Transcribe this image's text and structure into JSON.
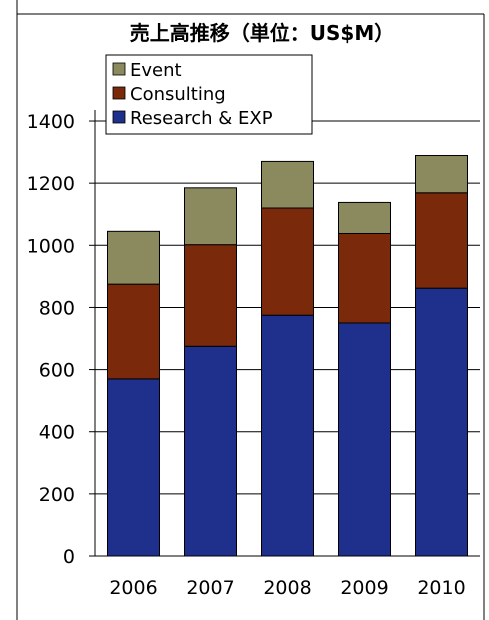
{
  "chart_data": {
    "type": "bar",
    "stacked": true,
    "title": "売上高推移（単位：US$M）",
    "xlabel": "",
    "ylabel": "",
    "categories": [
      "2006",
      "2007",
      "2008",
      "2009",
      "2010"
    ],
    "yticks": [
      "0",
      "200",
      "400",
      "600",
      "800",
      "1000",
      "1200",
      "1400"
    ],
    "ylim": [
      0,
      1500
    ],
    "grid": true,
    "legend_position": "top-left",
    "series": [
      {
        "name": "Research & EXP",
        "color": "#1f2f8c",
        "values": [
          570,
          675,
          775,
          750,
          862
        ]
      },
      {
        "name": "Consulting",
        "color": "#7a2a0a",
        "values": [
          305,
          327,
          345,
          288,
          307
        ]
      },
      {
        "name": "Event",
        "color": "#8a8a5e",
        "values": [
          170,
          183,
          150,
          100,
          120
        ]
      }
    ]
  }
}
